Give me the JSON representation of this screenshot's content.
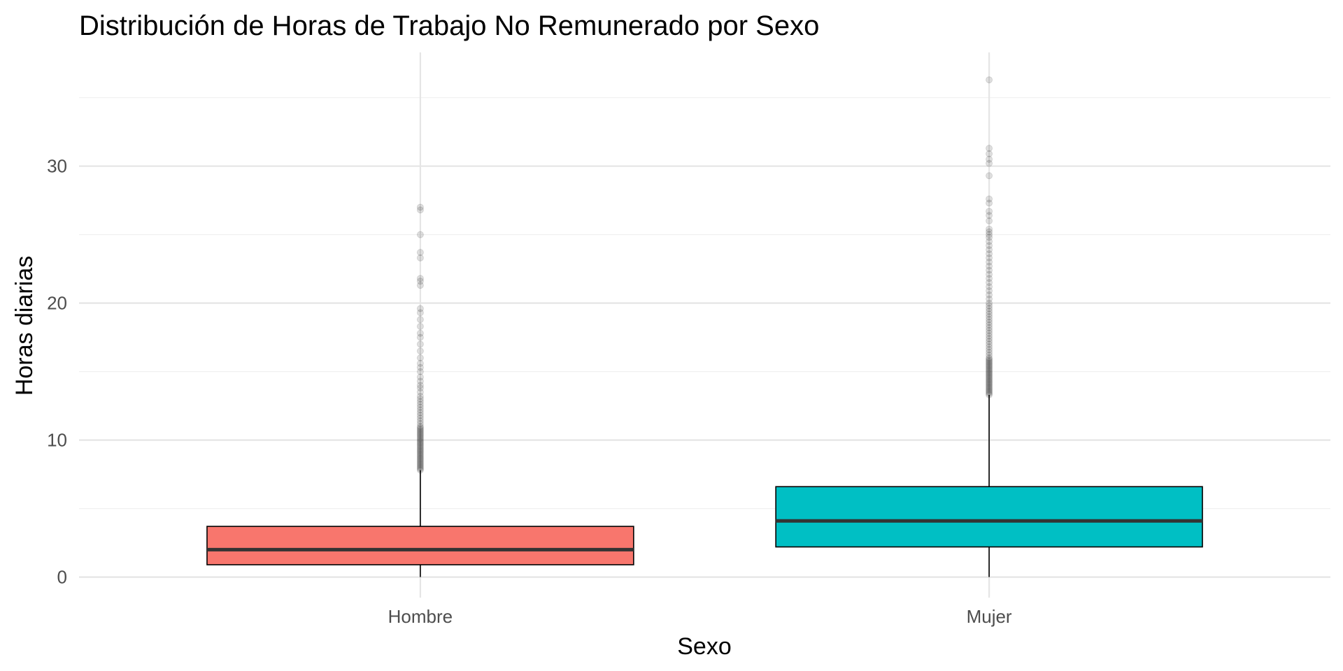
{
  "chart_data": {
    "type": "boxplot",
    "title": "Distribución de Horas de Trabajo No Remunerado por Sexo",
    "xlabel": "Sexo",
    "ylabel": "Horas diarias",
    "ylim": [
      -1.5,
      38.3
    ],
    "yticks": [
      0,
      10,
      20,
      30
    ],
    "y_minor_ticks": [
      5,
      15,
      25,
      35
    ],
    "grid": true,
    "legend": "none",
    "categories": [
      "Hombre",
      "Mujer"
    ],
    "series": [
      {
        "category": "Hombre",
        "color": "#F8766D",
        "min": 0,
        "q1": 0.9,
        "median": 2.0,
        "q3": 3.7,
        "whisker_high": 7.8,
        "outliers": [
          7.8,
          7.9,
          8.0,
          8.1,
          8.2,
          8.3,
          8.4,
          8.5,
          8.6,
          8.7,
          8.8,
          8.9,
          9.0,
          9.1,
          9.2,
          9.3,
          9.4,
          9.5,
          9.6,
          9.7,
          9.8,
          9.9,
          10.0,
          10.1,
          10.2,
          10.3,
          10.4,
          10.5,
          10.6,
          10.7,
          10.8,
          10.9,
          11.0,
          11.2,
          11.4,
          11.6,
          11.8,
          12.0,
          12.2,
          12.4,
          12.6,
          12.8,
          13.0,
          13.2,
          13.5,
          13.8,
          14.0,
          14.3,
          14.6,
          15.0,
          15.3,
          15.6,
          16.0,
          16.5,
          17.0,
          17.5,
          17.8,
          18.3,
          18.8,
          19.3,
          19.6,
          21.3,
          21.6,
          21.8,
          23.3,
          23.7,
          25.0,
          26.8,
          27.0
        ]
      },
      {
        "category": "Mujer",
        "color": "#00BFC4",
        "min": 0,
        "q1": 2.2,
        "median": 4.1,
        "q3": 6.6,
        "whisker_high": 13.3,
        "outliers": [
          13.3,
          13.4,
          13.5,
          13.6,
          13.7,
          13.8,
          13.9,
          14.0,
          14.1,
          14.2,
          14.3,
          14.4,
          14.5,
          14.6,
          14.7,
          14.8,
          14.9,
          15.0,
          15.1,
          15.2,
          15.3,
          15.4,
          15.5,
          15.6,
          15.7,
          15.8,
          15.9,
          16.0,
          16.2,
          16.4,
          16.6,
          16.8,
          17.0,
          17.2,
          17.4,
          17.6,
          17.8,
          18.0,
          18.2,
          18.4,
          18.6,
          18.8,
          19.0,
          19.2,
          19.4,
          19.6,
          19.8,
          20.0,
          20.3,
          20.6,
          20.9,
          21.2,
          21.5,
          21.8,
          22.1,
          22.4,
          22.7,
          23.0,
          23.3,
          23.6,
          23.9,
          24.2,
          24.5,
          24.8,
          25.0,
          25.2,
          25.4,
          26.0,
          26.4,
          26.7,
          27.3,
          27.6,
          29.3,
          30.2,
          30.5,
          30.9,
          31.3,
          36.3
        ]
      }
    ]
  }
}
